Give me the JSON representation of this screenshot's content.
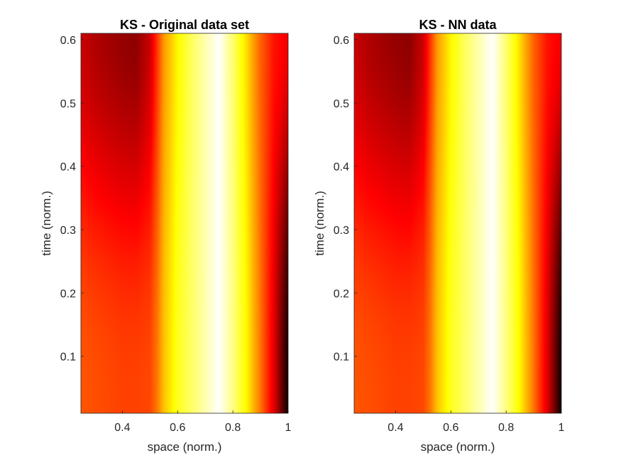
{
  "chart_data": [
    {
      "type": "heatmap",
      "title": "KS - Original data set",
      "xlabel": "space (norm.)",
      "ylabel": "time (norm.)",
      "xlim": [
        0.25,
        1.0
      ],
      "ylim": [
        0.01,
        0.61
      ],
      "xticks": [
        0.4,
        0.6,
        0.8,
        1.0
      ],
      "xtick_labels": [
        "0.4",
        "0.6",
        "0.8",
        "1"
      ],
      "yticks": [
        0.1,
        0.2,
        0.3,
        0.4,
        0.5,
        0.6
      ],
      "ytick_labels": [
        "0.1",
        "0.2",
        "0.3",
        "0.4",
        "0.5",
        "0.6"
      ],
      "colormap": "hot",
      "grid": false,
      "profile": {
        "x": [
          0.25,
          0.3,
          0.4,
          0.45,
          0.5,
          0.525,
          0.55,
          0.6,
          0.65,
          0.7,
          0.75,
          0.8,
          0.85,
          0.9,
          0.95,
          1.0
        ],
        "v_bottom": [
          0.5,
          0.49,
          0.47,
          0.47,
          0.48,
          0.55,
          0.66,
          0.78,
          0.85,
          0.92,
          1.0,
          0.88,
          0.74,
          0.55,
          0.33,
          0.02
        ],
        "v_top": [
          0.3,
          0.26,
          0.22,
          0.21,
          0.3,
          0.45,
          0.6,
          0.74,
          0.84,
          0.92,
          1.0,
          0.86,
          0.7,
          0.52,
          0.4,
          0.36
        ]
      }
    },
    {
      "type": "heatmap",
      "title": "KS - NN data",
      "xlabel": "space (norm.)",
      "ylabel": "time (norm.)",
      "xlim": [
        0.25,
        1.0
      ],
      "ylim": [
        0.01,
        0.61
      ],
      "xticks": [
        0.4,
        0.6,
        0.8,
        1.0
      ],
      "xtick_labels": [
        "0.4",
        "0.6",
        "0.8",
        "1"
      ],
      "yticks": [
        0.1,
        0.2,
        0.3,
        0.4,
        0.5,
        0.6
      ],
      "ytick_labels": [
        "0.1",
        "0.2",
        "0.3",
        "0.4",
        "0.5",
        "0.6"
      ],
      "colormap": "hot",
      "grid": false,
      "profile": {
        "x": [
          0.25,
          0.3,
          0.4,
          0.45,
          0.5,
          0.525,
          0.55,
          0.6,
          0.65,
          0.7,
          0.75,
          0.8,
          0.85,
          0.9,
          0.95,
          1.0
        ],
        "v_bottom": [
          0.5,
          0.49,
          0.47,
          0.47,
          0.48,
          0.55,
          0.66,
          0.78,
          0.85,
          0.92,
          1.0,
          0.88,
          0.74,
          0.55,
          0.33,
          0.02
        ],
        "v_top": [
          0.3,
          0.26,
          0.22,
          0.21,
          0.3,
          0.45,
          0.6,
          0.74,
          0.84,
          0.92,
          1.0,
          0.86,
          0.7,
          0.52,
          0.4,
          0.36
        ]
      }
    }
  ]
}
